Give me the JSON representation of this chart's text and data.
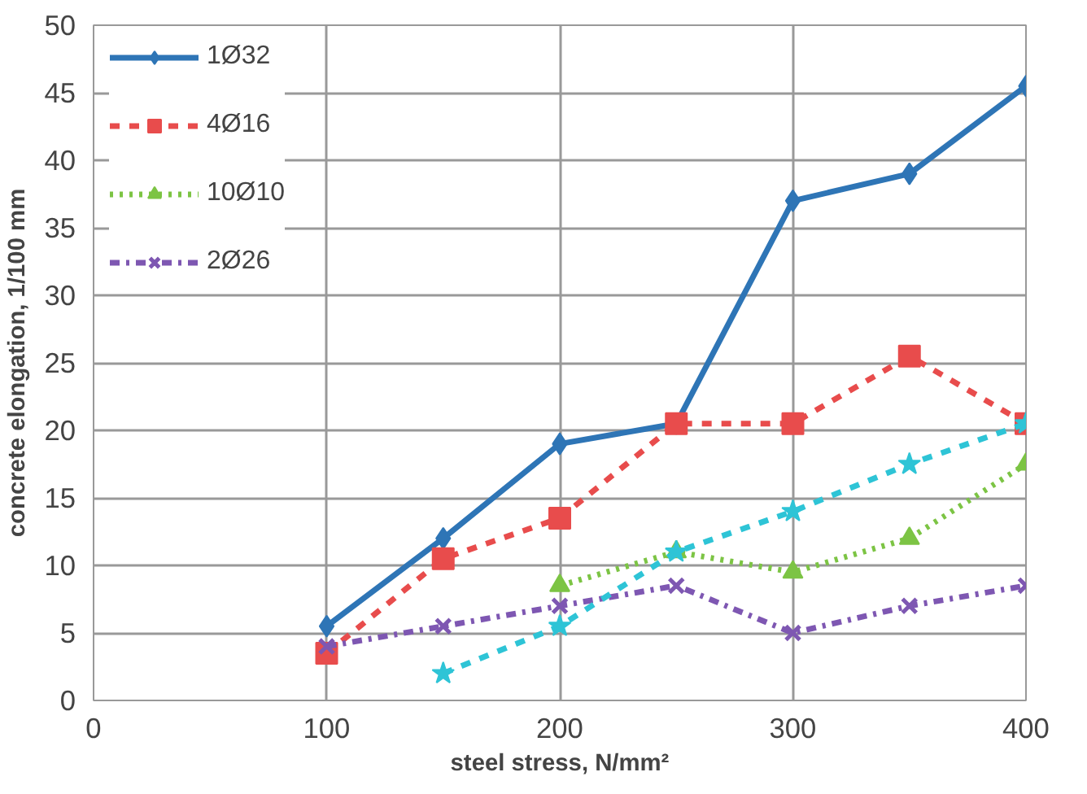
{
  "chart_data": {
    "type": "line",
    "xlabel": "steel stress, N/mm²",
    "ylabel": "concrete elongation, 1/100 mm",
    "x": [
      100,
      150,
      200,
      250,
      300,
      350,
      400
    ],
    "xlim": [
      0,
      400
    ],
    "xticks": [
      0,
      100,
      200,
      300,
      400
    ],
    "ylim": [
      0,
      50
    ],
    "yticks": [
      0,
      5,
      10,
      15,
      20,
      25,
      30,
      35,
      40,
      45,
      50
    ],
    "grid": true,
    "legend": "top left",
    "series": [
      {
        "name": "1Ø32",
        "color": "#2e75b6",
        "marker": "diamond",
        "line_style": "solid",
        "values": [
          5.5,
          12,
          19,
          20.5,
          37,
          39,
          45.5
        ]
      },
      {
        "name": "4Ø16",
        "color": "#e84c4c",
        "marker": "square",
        "line_style": "dashed",
        "values": [
          3.5,
          10.5,
          13.5,
          20.5,
          20.5,
          25.5,
          20.5
        ]
      },
      {
        "name": "10Ø10",
        "color": "#7cc444",
        "marker": "triangle",
        "line_style": "dotted",
        "values": [
          null,
          null,
          8.5,
          11,
          9.5,
          12,
          17.5
        ]
      },
      {
        "name": "2Ø26",
        "color": "#7e57b2",
        "marker": "cross",
        "line_style": "dashdot",
        "values": [
          4,
          5.5,
          7,
          8.5,
          5,
          7,
          8.5
        ]
      },
      {
        "color": "#2ec4d6",
        "marker": "star",
        "line_style": "dashed",
        "values": [
          null,
          2,
          5.5,
          11,
          14,
          17.5,
          20.5
        ]
      }
    ]
  }
}
